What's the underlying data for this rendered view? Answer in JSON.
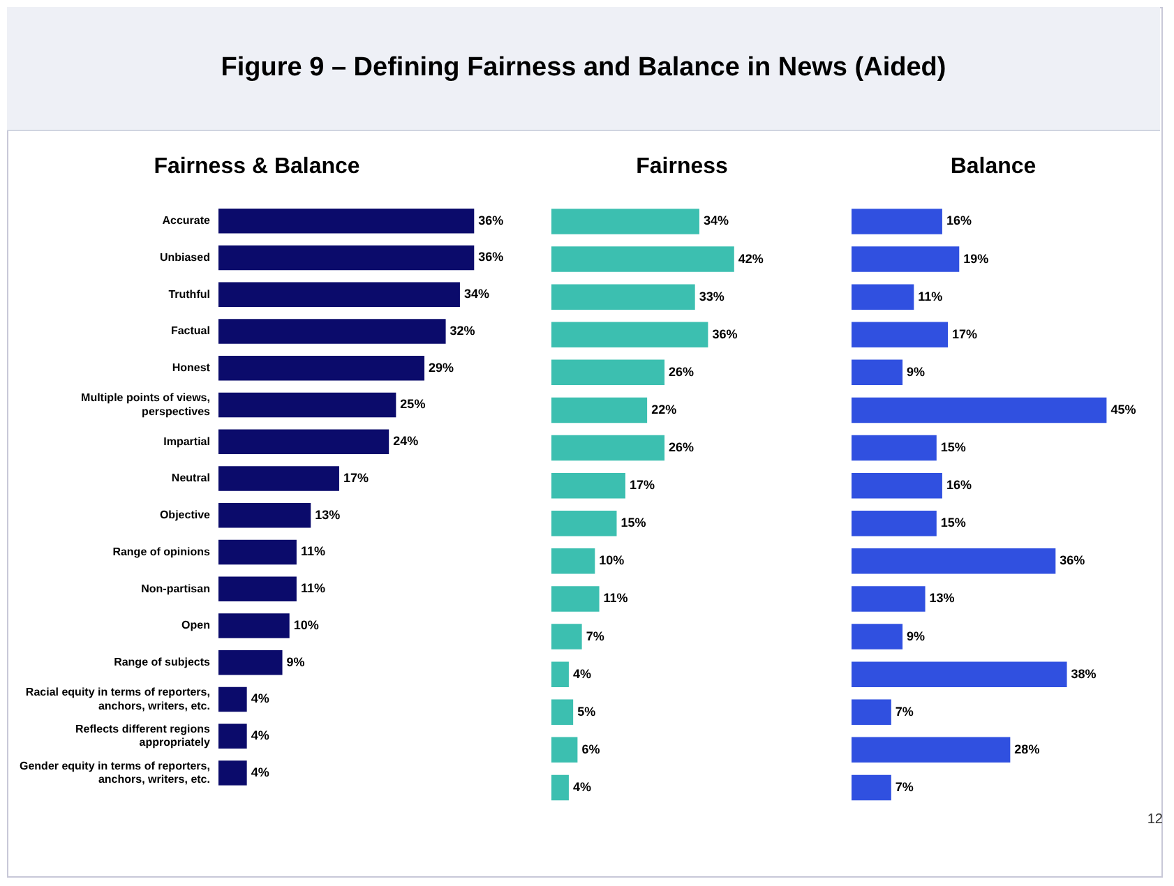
{
  "chart_data": [
    {
      "type": "bar",
      "orientation": "horizontal",
      "title": "Figure 9 – Defining Fairness and Balance in News (Aided)",
      "subtitle": "Fairness & Balance",
      "categories": [
        "Accurate",
        "Unbiased",
        "Truthful",
        "Factual",
        "Honest",
        "Multiple points of views, perspectives",
        "Impartial",
        "Neutral",
        "Objective",
        "Range of opinions",
        "Non-partisan",
        "Open",
        "Range of subjects",
        "Racial equity in terms of reporters, anchors, writers, etc.",
        "Reflects different regions appropriately",
        "Gender equity in terms of reporters, anchors, writers, etc."
      ],
      "values": [
        36,
        36,
        34,
        32,
        29,
        25,
        24,
        17,
        13,
        11,
        11,
        10,
        9,
        4,
        4,
        4
      ],
      "value_labels": [
        "36%",
        "36%",
        "34%",
        "32%",
        "29%",
        "25%",
        "24%",
        "17%",
        "13%",
        "11%",
        "11%",
        "10%",
        "9%",
        "4%",
        "4%",
        "4%"
      ],
      "color": "#0b0b6b",
      "tick_labels": "y",
      "grid": false,
      "legend": false
    },
    {
      "type": "bar",
      "orientation": "horizontal",
      "title": "Fairness",
      "categories": [
        null,
        null,
        null,
        null,
        null,
        null,
        null,
        null,
        null,
        null,
        null,
        null,
        null,
        null,
        null,
        null
      ],
      "values": [
        34,
        42,
        33,
        36,
        26,
        22,
        26,
        17,
        15,
        10,
        11,
        7,
        4,
        5,
        6,
        4
      ],
      "value_labels": [
        "34%",
        "42%",
        "33%",
        "36%",
        "26%",
        "22%",
        "26%",
        "17%",
        "15%",
        "10%",
        "11%",
        "7%",
        "4%",
        "5%",
        "6%",
        "4%"
      ],
      "color": "#3cbfb0",
      "tick_labels": false,
      "grid": false,
      "legend": false
    },
    {
      "type": "bar",
      "orientation": "horizontal",
      "title": "Balance",
      "categories": [
        null,
        null,
        null,
        null,
        null,
        null,
        null,
        null,
        null,
        null,
        null,
        null,
        null,
        null,
        null,
        null
      ],
      "values": [
        16,
        19,
        11,
        17,
        9,
        45,
        15,
        16,
        15,
        36,
        13,
        9,
        38,
        7,
        28,
        7
      ],
      "value_labels": [
        "16%",
        "19%",
        "11%",
        "17%",
        "9%",
        "45%",
        "15%",
        "16%",
        "15%",
        "36%",
        "13%",
        "9%",
        "38%",
        "7%",
        "28%",
        "7%"
      ],
      "color": "#3050e0",
      "tick_labels": false,
      "grid": false,
      "legend": false,
      "annotations": [
        "12"
      ]
    }
  ]
}
